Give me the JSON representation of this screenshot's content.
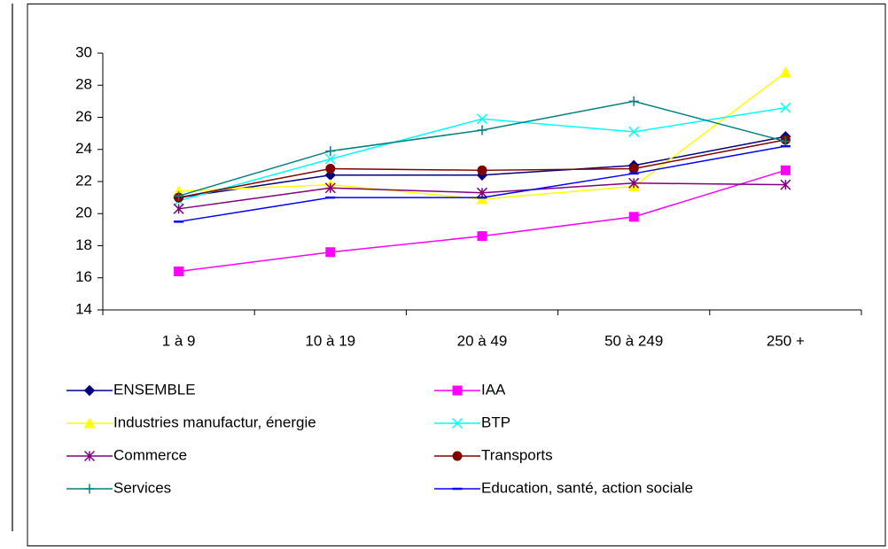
{
  "chart_data": {
    "type": "line",
    "categories": [
      "1 à 9",
      "10 à 19",
      "20 à 49",
      "50 à 249",
      "250 +"
    ],
    "series": [
      {
        "name": "ENSEMBLE",
        "color": "#000080",
        "marker": "diamond",
        "values": [
          21.0,
          22.4,
          22.4,
          23.0,
          24.8
        ]
      },
      {
        "name": "IAA",
        "color": "#ff00ff",
        "marker": "square",
        "values": [
          16.4,
          17.6,
          18.6,
          19.8,
          22.7
        ]
      },
      {
        "name": "Industries manufactur, énergie",
        "color": "#ffff00",
        "marker": "triangle",
        "values": [
          21.4,
          21.8,
          20.9,
          21.7,
          28.8
        ]
      },
      {
        "name": "BTP",
        "color": "#00ffff",
        "marker": "x",
        "values": [
          20.8,
          23.4,
          25.9,
          25.1,
          26.6
        ]
      },
      {
        "name": "Commerce",
        "color": "#800080",
        "marker": "star",
        "values": [
          20.3,
          21.6,
          21.3,
          21.9,
          21.8
        ]
      },
      {
        "name": "Transports",
        "color": "#800000",
        "marker": "circle",
        "values": [
          21.0,
          22.8,
          22.7,
          22.8,
          24.6
        ]
      },
      {
        "name": "Services",
        "color": "#008080",
        "marker": "plus",
        "values": [
          21.1,
          23.9,
          25.2,
          27.0,
          24.5
        ]
      },
      {
        "name": "Education, santé, action sociale",
        "color": "#0000ff",
        "marker": "dash",
        "values": [
          19.5,
          21.0,
          21.0,
          22.5,
          24.2
        ]
      }
    ],
    "ylim": [
      14,
      30
    ],
    "yticks": [
      14,
      16,
      18,
      20,
      22,
      24,
      26,
      28,
      30
    ],
    "grid": false
  }
}
